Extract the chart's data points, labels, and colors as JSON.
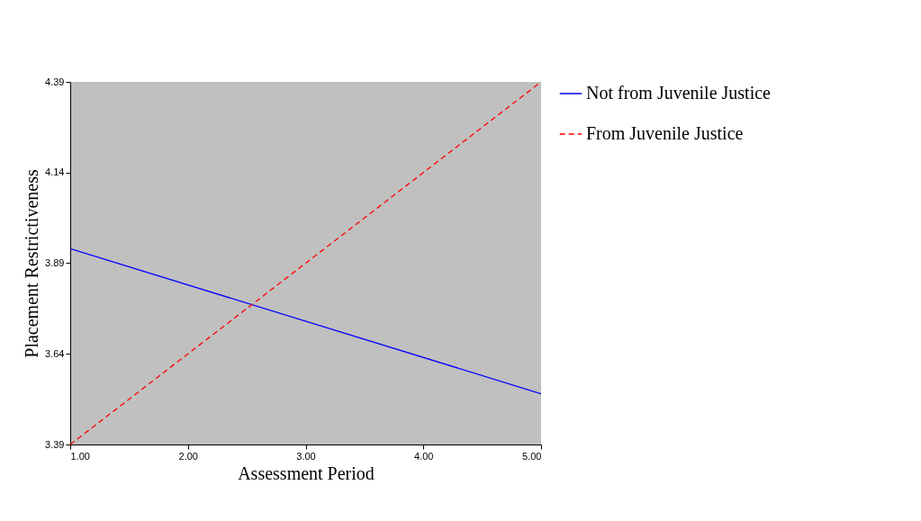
{
  "chart_data": {
    "type": "line",
    "xlabel": "Assessment Period",
    "ylabel": "Placement Restrictiveness",
    "x": [
      1,
      5
    ],
    "series": [
      {
        "name": "Not from Juvenile Justice",
        "color": "#0000ff",
        "values": [
          3.93,
          3.53
        ],
        "line_style": "solid"
      },
      {
        "name": "From Juvenile Justice",
        "color": "#ff0000",
        "values": [
          3.39,
          4.39
        ],
        "line_style": "dashed"
      }
    ],
    "xlim": [
      1,
      5
    ],
    "xticks": [
      {
        "value": 1,
        "label": "1.00"
      },
      {
        "value": 2,
        "label": "2.00"
      },
      {
        "value": 3,
        "label": "3.00"
      },
      {
        "value": 4,
        "label": "4.00"
      },
      {
        "value": 5,
        "label": "5.00"
      }
    ],
    "ylim": [
      3.39,
      4.39
    ],
    "yticks": [
      3.39,
      3.64,
      3.89,
      4.14,
      4.39
    ],
    "grid": false,
    "legend": "top right",
    "marker": "none"
  }
}
